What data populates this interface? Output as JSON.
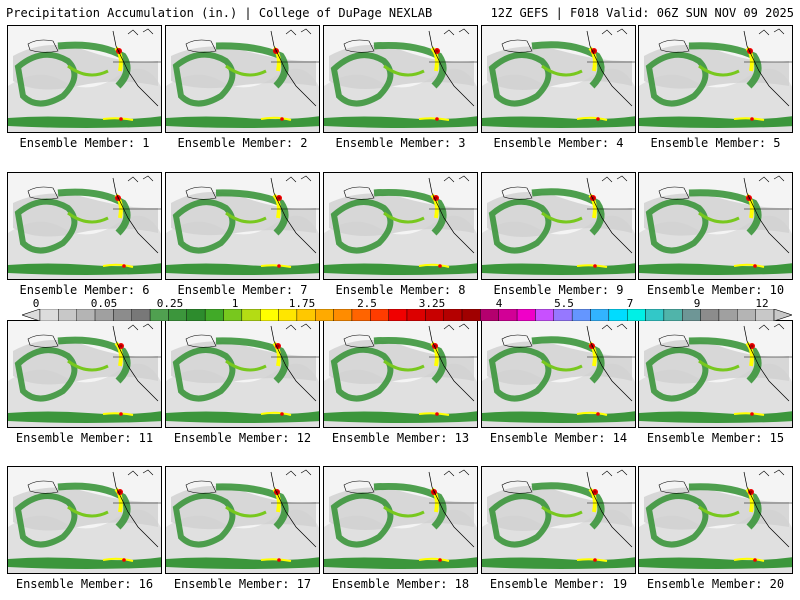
{
  "header": {
    "left_title": "Precipitation Accumulation (in.) | College of DuPage NEXLAB",
    "right_title": "12Z GEFS | F018 Valid: 06Z SUN NOV 09 2025"
  },
  "member_prefix": "Ensemble Member: ",
  "members": [
    {
      "label": "Ensemble Member: 1"
    },
    {
      "label": "Ensemble Member: 2"
    },
    {
      "label": "Ensemble Member: 3"
    },
    {
      "label": "Ensemble Member: 4"
    },
    {
      "label": "Ensemble Member: 5"
    },
    {
      "label": "Ensemble Member: 6"
    },
    {
      "label": "Ensemble Member: 7"
    },
    {
      "label": "Ensemble Member: 8"
    },
    {
      "label": "Ensemble Member: 9"
    },
    {
      "label": "Ensemble Member: 10"
    },
    {
      "label": "Ensemble Member: 11"
    },
    {
      "label": "Ensemble Member: 12"
    },
    {
      "label": "Ensemble Member: 13"
    },
    {
      "label": "Ensemble Member: 14"
    },
    {
      "label": "Ensemble Member: 15"
    },
    {
      "label": "Ensemble Member: 16"
    },
    {
      "label": "Ensemble Member: 17"
    },
    {
      "label": "Ensemble Member: 18"
    },
    {
      "label": "Ensemble Member: 19"
    },
    {
      "label": "Ensemble Member: 20"
    }
  ],
  "colorbar": {
    "labels": [
      "0",
      "0.05",
      "0.25",
      "1",
      "1.75",
      "2.5",
      "3.25",
      "4",
      "5.5",
      "7",
      "9",
      "12"
    ],
    "colors": [
      "#dcdcdc",
      "#c8c8c8",
      "#b4b4b4",
      "#a0a0a0",
      "#8c8c8c",
      "#787878",
      "#50a050",
      "#3c963c",
      "#2d8c2d",
      "#41aa28",
      "#78c81e",
      "#b4dc14",
      "#ffff00",
      "#ffe600",
      "#ffc800",
      "#ffaa00",
      "#ff8c00",
      "#ff6400",
      "#ff3c00",
      "#f00000",
      "#dc0000",
      "#c80000",
      "#b40000",
      "#a00000",
      "#b4006e",
      "#d20096",
      "#f000c8",
      "#c850ff",
      "#9678ff",
      "#6496ff",
      "#32b4ff",
      "#00dcff",
      "#00f0e6",
      "#32c8c8",
      "#50b4aa",
      "#6e9696",
      "#8c8c8c",
      "#a0a0a0",
      "#b4b4b4",
      "#c8c8c8"
    ]
  }
}
